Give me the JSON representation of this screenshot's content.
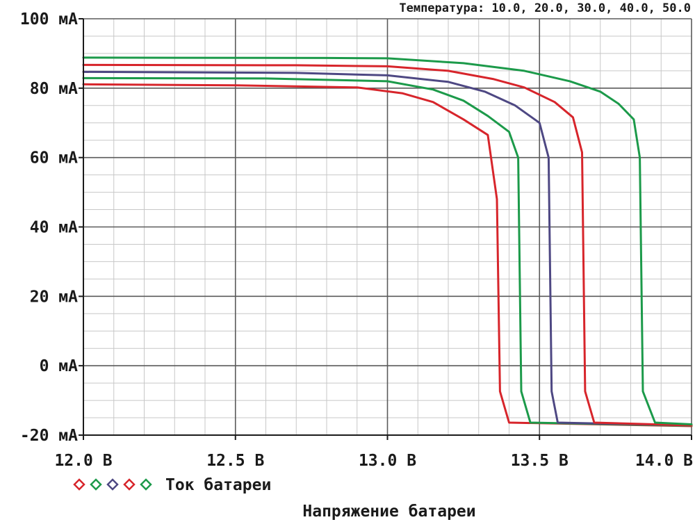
{
  "chart_data": {
    "type": "line",
    "header": "Температура: 10.0, 20.0, 30.0, 40.0, 50.0",
    "xlabel": "Напряжение батареи",
    "legend_label": "Ток батареи",
    "legend_placement": "bottom-left",
    "xlim": [
      12.0,
      14.0
    ],
    "ylim": [
      -20,
      100
    ],
    "grid": true,
    "x_ticks": [
      "12.0 В",
      "12.5 В",
      "13.0 В",
      "13.5 В",
      "14.0 В"
    ],
    "y_ticks": [
      "100 мА",
      "80 мА",
      "60 мА",
      "40 мА",
      "20 мА",
      "0 мА",
      "-20 мА"
    ],
    "series": [
      {
        "color": "#d7252b",
        "points": [
          [
            12.0,
            81.1
          ],
          [
            12.5,
            80.8
          ],
          [
            12.9,
            80.2
          ],
          [
            13.05,
            78.5
          ],
          [
            13.15,
            76.0
          ],
          [
            13.25,
            71.0
          ],
          [
            13.33,
            66.5
          ],
          [
            13.36,
            48.0
          ],
          [
            13.37,
            -7.4
          ],
          [
            13.4,
            -16.4
          ],
          [
            14.0,
            -17.4
          ]
        ]
      },
      {
        "color": "#1c9a4a",
        "points": [
          [
            12.0,
            82.9
          ],
          [
            12.6,
            82.8
          ],
          [
            13.0,
            82.0
          ],
          [
            13.15,
            79.6
          ],
          [
            13.25,
            76.4
          ],
          [
            13.33,
            72.0
          ],
          [
            13.4,
            67.4
          ],
          [
            13.43,
            60.0
          ],
          [
            13.44,
            -7.4
          ],
          [
            13.47,
            -16.4
          ],
          [
            14.0,
            -17.3
          ]
        ]
      },
      {
        "color": "#4e4883",
        "points": [
          [
            12.0,
            84.7
          ],
          [
            12.7,
            84.4
          ],
          [
            13.0,
            83.7
          ],
          [
            13.2,
            81.8
          ],
          [
            13.32,
            79.0
          ],
          [
            13.42,
            75.0
          ],
          [
            13.5,
            70.0
          ],
          [
            13.53,
            60.0
          ],
          [
            13.54,
            -7.4
          ],
          [
            13.56,
            -16.4
          ],
          [
            14.0,
            -17.2
          ]
        ]
      },
      {
        "color": "#d7252b",
        "points": [
          [
            12.0,
            86.7
          ],
          [
            12.7,
            86.6
          ],
          [
            13.0,
            86.3
          ],
          [
            13.2,
            85.0
          ],
          [
            13.35,
            82.6
          ],
          [
            13.45,
            80.2
          ],
          [
            13.55,
            76.0
          ],
          [
            13.61,
            71.6
          ],
          [
            13.64,
            61.5
          ],
          [
            13.65,
            -7.4
          ],
          [
            13.68,
            -16.4
          ],
          [
            14.0,
            -17.2
          ]
        ]
      },
      {
        "color": "#1c9a4a",
        "points": [
          [
            12.0,
            88.8
          ],
          [
            12.8,
            88.7
          ],
          [
            13.0,
            88.6
          ],
          [
            13.25,
            87.2
          ],
          [
            13.45,
            85.0
          ],
          [
            13.6,
            82.0
          ],
          [
            13.7,
            79.0
          ],
          [
            13.76,
            75.5
          ],
          [
            13.81,
            71.0
          ],
          [
            13.83,
            60.0
          ],
          [
            13.84,
            -7.4
          ],
          [
            13.88,
            -16.4
          ],
          [
            14.0,
            -16.9
          ]
        ]
      }
    ]
  }
}
